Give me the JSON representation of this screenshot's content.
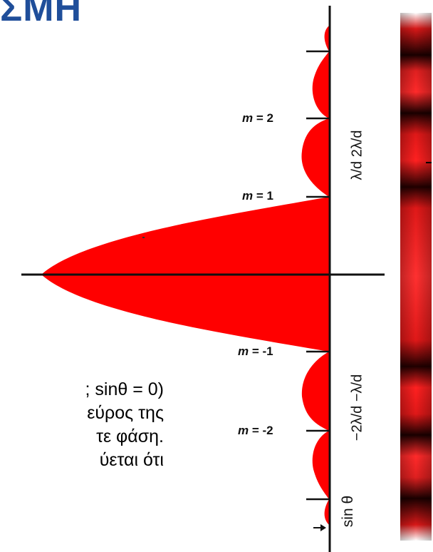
{
  "slide": {
    "title": "ΣΜΗ",
    "body_lines": [
      "; sinθ = 0)",
      "εύρος της",
      "τε φάση.",
      "ύεται ότι"
    ]
  },
  "diagram": {
    "order_labels": [
      {
        "prefix": "m",
        "text": " = 2"
      },
      {
        "prefix": "m",
        "text": " = 1"
      },
      {
        "prefix": "m",
        "text": " = -1"
      },
      {
        "prefix": "m",
        "text": " = -2"
      }
    ],
    "axis_labels": {
      "upper": "λ/d  2λ/d",
      "lower": "−2λ/d  −λ/d",
      "axis": "sin θ"
    },
    "colors": {
      "fill": "#ff0000",
      "axis": "#111111",
      "title": "#1f4e9a"
    }
  }
}
